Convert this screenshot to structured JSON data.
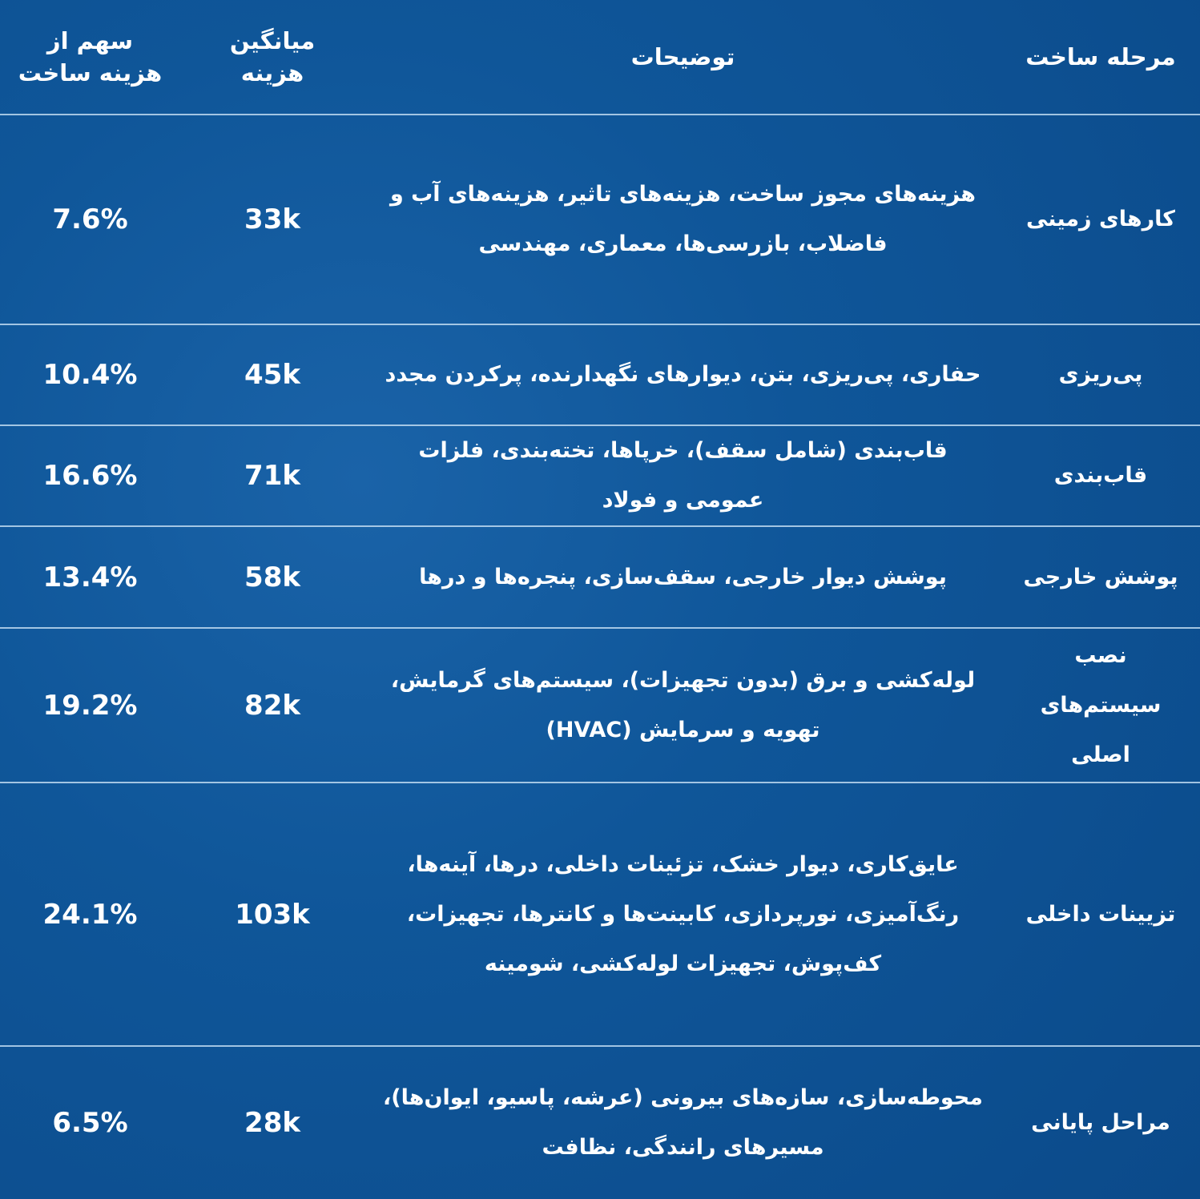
{
  "table": {
    "header": [
      "مرحله ساخت",
      "توضیحات",
      "میانگین هزینه",
      "سهم از هزینه ساخت"
    ],
    "rows": [
      [
        "کارهای زمینی",
        "هزینه‌های مجوز ساخت، هزینه‌های تاثیر، هزینه‌های آب و فاضلاب، بازرسی‌ها، معماری، مهندسی",
        "33k",
        "7.6%"
      ],
      [
        "پی‌ریزی",
        "حفاری، پی‌ریزی، بتن، دیوارهای نگهدارنده، پرکردن مجدد",
        "45k",
        "10.4%"
      ],
      [
        "قاب‌بندی",
        "قاب‌بندی (شامل سقف)، خرپاها، تخته‌بندی، فلزات عمومی و فولاد",
        "71k",
        "16.6%"
      ],
      [
        "پوشش خارجی",
        "پوشش دیوار خارجی، سقف‌سازی، پنجره‌ها و درها",
        "58k",
        "13.4%"
      ],
      [
        "نصب سیستم‌های اصلی",
        "لوله‌کشی و برق (بدون تجهیزات)، سیستم‌های گرمایش، تهویه و سرمایش (HVAC)",
        "82k",
        "19.2%"
      ],
      [
        "تزیینات داخلی",
        "عایق‌کاری، دیوار خشک، تزئینات داخلی، درها، آینه‌ها، رنگ‌آمیزی، نورپردازی، کابینت‌ها و کانترها، تجهیزات، کف‌پوش، تجهیزات لوله‌کشی، شومینه",
        "103k",
        "24.1%"
      ],
      [
        "مراحل پایانی",
        "محوطه‌سازی، سازه‌های بیرونی (عرشه، پاسیو، ایوان‌ها)، مسیرهای رانندگی، نظافت",
        "28k",
        "6.5%"
      ]
    ]
  }
}
